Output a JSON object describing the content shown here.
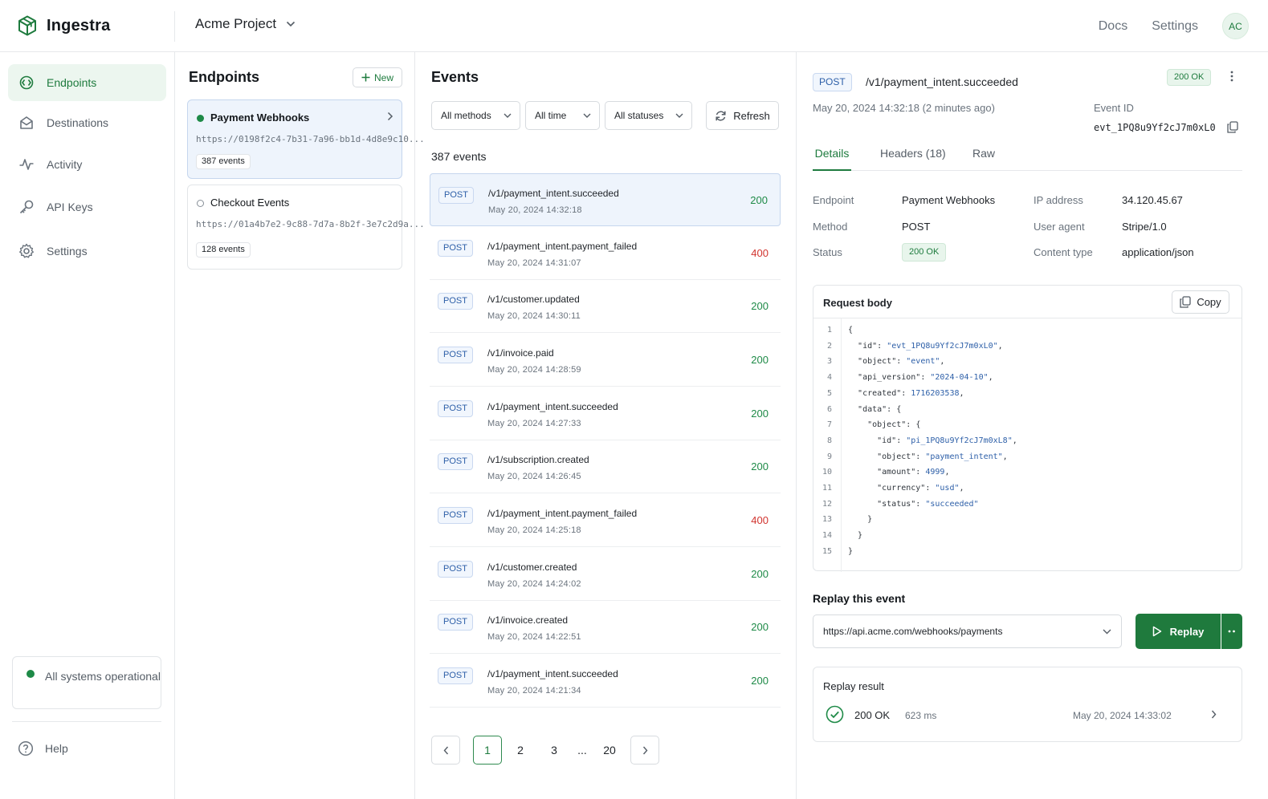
{
  "app": {
    "name": "Ingestra",
    "project": "Acme Project"
  },
  "topnav": {
    "docs": "Docs",
    "settings": "Settings",
    "avatar": "AC"
  },
  "sidebar": {
    "items": [
      {
        "label": "Endpoints",
        "icon": "endpoints-icon",
        "active": true
      },
      {
        "label": "Destinations",
        "icon": "destinations-icon"
      },
      {
        "label": "Activity",
        "icon": "activity-icon"
      },
      {
        "label": "API Keys",
        "icon": "key-icon"
      },
      {
        "label": "Settings",
        "icon": "gear-icon"
      }
    ],
    "status": "All systems operational",
    "help": "Help"
  },
  "endpoints": {
    "title": "Endpoints",
    "new_label": "New",
    "items": [
      {
        "name": "Payment Webhooks",
        "url": "https://0198f2c4-7b31-7a96-bb1d-4d8e9c10...",
        "count": "387 events"
      },
      {
        "name": "Checkout Events",
        "url": "https://01a4b7e2-9c88-7d7a-8b2f-3e7c2d9a...",
        "count": "128 events"
      }
    ]
  },
  "events": {
    "title": "Events",
    "filters": {
      "methods": "All methods",
      "time": "All time",
      "statuses": "All statuses",
      "refresh": "Refresh"
    },
    "count": "387 events",
    "rows": [
      {
        "method": "POST",
        "path": "/v1/payment_intent.succeeded",
        "time": "May 20, 2024 14:32:18",
        "status": "200"
      },
      {
        "method": "POST",
        "path": "/v1/payment_intent.payment_failed",
        "time": "May 20, 2024 14:31:07",
        "status": "400"
      },
      {
        "method": "POST",
        "path": "/v1/customer.updated",
        "time": "May 20, 2024 14:30:11",
        "status": "200"
      },
      {
        "method": "POST",
        "path": "/v1/invoice.paid",
        "time": "May 20, 2024 14:28:59",
        "status": "200"
      },
      {
        "method": "POST",
        "path": "/v1/payment_intent.succeeded",
        "time": "May 20, 2024 14:27:33",
        "status": "200"
      },
      {
        "method": "POST",
        "path": "/v1/subscription.created",
        "time": "May 20, 2024 14:26:45",
        "status": "200"
      },
      {
        "method": "POST",
        "path": "/v1/payment_intent.payment_failed",
        "time": "May 20, 2024 14:25:18",
        "status": "400"
      },
      {
        "method": "POST",
        "path": "/v1/customer.created",
        "time": "May 20, 2024 14:24:02",
        "status": "200"
      },
      {
        "method": "POST",
        "path": "/v1/invoice.created",
        "time": "May 20, 2024 14:22:51",
        "status": "200"
      },
      {
        "method": "POST",
        "path": "/v1/payment_intent.succeeded",
        "time": "May 20, 2024 14:21:34",
        "status": "200"
      }
    ],
    "pagination": {
      "pages": [
        "1",
        "2",
        "3",
        "...",
        "20"
      ],
      "current": "1"
    }
  },
  "detail": {
    "method": "POST",
    "path": "/v1/payment_intent.succeeded",
    "status_badge": "200 OK",
    "timestamp": "May 20, 2024 14:32:18 (2 minutes ago)",
    "event_id_label": "Event ID",
    "event_id": "evt_1PQ8u9Yf2cJ7m0xL0",
    "tabs": [
      "Details",
      "Headers (18)",
      "Raw"
    ],
    "fields": {
      "endpoint_label": "Endpoint",
      "endpoint": "Payment Webhooks",
      "method_label": "Method",
      "method": "POST",
      "status_label": "Status",
      "status": "200 OK",
      "ip_label": "IP address",
      "ip": "34.120.45.67",
      "ua_label": "User agent",
      "ua": "Stripe/1.0",
      "ct_label": "Content type",
      "ct": "application/json"
    },
    "request_body_title": "Request body",
    "copy_label": "Copy",
    "code_lines": [
      "{",
      "  \"id\": \"evt_1PQ8u9Yf2cJ7m0xL0\",",
      "  \"object\": \"event\",",
      "  \"api_version\": \"2024-04-10\",",
      "  \"created\": 1716203538,",
      "  \"data\": {",
      "    \"object\": {",
      "      \"id\": \"pi_1PQ8u9Yf2cJ7m0xL8\",",
      "      \"object\": \"payment_intent\",",
      "      \"amount\": 4999,",
      "      \"currency\": \"usd\",",
      "      \"status\": \"succeeded\"",
      "    }",
      "  }",
      "}"
    ],
    "replay": {
      "title": "Replay this event",
      "url": "https://api.acme.com/webhooks/payments",
      "button": "Replay",
      "result_title": "Replay result",
      "result_status": "200 OK",
      "result_ms": "623 ms",
      "result_time": "May 20, 2024 14:33:02"
    }
  },
  "colors": {
    "accent": "#1e7b3e",
    "success": "#1e8a47",
    "error": "#d1342f",
    "method": "#2d5fa8",
    "selected_bg": "#eef4fc"
  }
}
